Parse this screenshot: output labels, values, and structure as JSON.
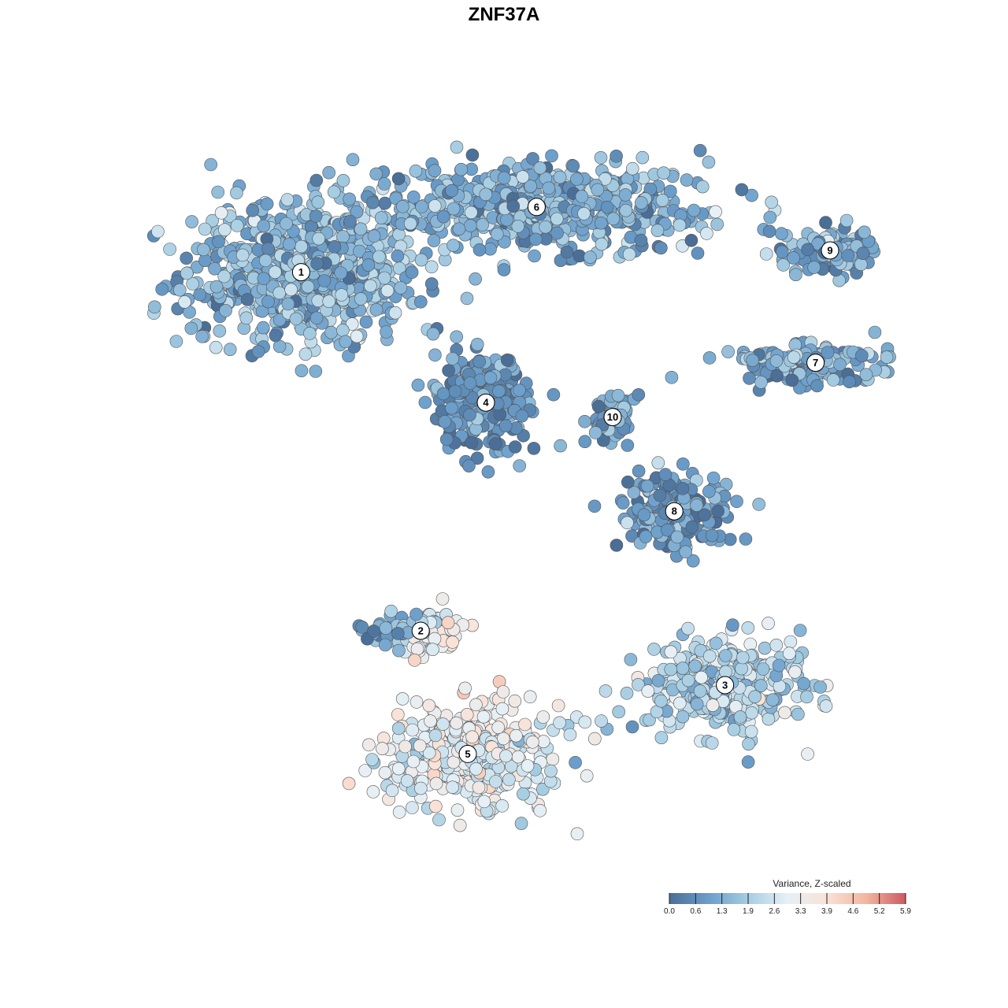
{
  "chart_data": {
    "type": "scatter",
    "title": "ZNF37A",
    "xlabel": "",
    "ylabel": "",
    "grid": false,
    "legend_position": "bottom-right",
    "colorbar": {
      "title": "Variance, Z-scaled",
      "ticks": [
        "0.0",
        "0.6",
        "1.3",
        "1.9",
        "2.6",
        "3.3",
        "3.9",
        "4.6",
        "5.2",
        "5.9"
      ],
      "range": [
        0.0,
        5.9
      ],
      "colors": [
        "#4a6e96",
        "#6b9ecb",
        "#a6cde2",
        "#e6f0f6",
        "#f9e2d6",
        "#f3b59e",
        "#cc5a62"
      ]
    },
    "clusters": [
      {
        "label": "1",
        "x": -5.6,
        "y": 6.4,
        "mean_value": 1.5,
        "spread": [
          3.0,
          1.8
        ]
      },
      {
        "label": "2",
        "x": -2.3,
        "y": -3.5,
        "mean_value": 1.2,
        "spread": [
          1.3,
          0.5
        ]
      },
      {
        "label": "3",
        "x": 6.1,
        "y": -5.0,
        "mean_value": 2.2,
        "spread": [
          2.0,
          1.2
        ]
      },
      {
        "label": "4",
        "x": -0.5,
        "y": 2.8,
        "mean_value": 0.8,
        "spread": [
          1.3,
          1.2
        ]
      },
      {
        "label": "5",
        "x": -1.0,
        "y": -6.9,
        "mean_value": 2.9,
        "spread": [
          2.3,
          1.3
        ]
      },
      {
        "label": "6",
        "x": 0.9,
        "y": 8.2,
        "mean_value": 1.3,
        "spread": [
          4.5,
          1.0
        ]
      },
      {
        "label": "7",
        "x": 8.6,
        "y": 3.9,
        "mean_value": 1.2,
        "spread": [
          2.0,
          0.5
        ]
      },
      {
        "label": "8",
        "x": 4.7,
        "y": -0.2,
        "mean_value": 0.9,
        "spread": [
          1.3,
          1.0
        ]
      },
      {
        "label": "9",
        "x": 9.0,
        "y": 7.0,
        "mean_value": 1.3,
        "spread": [
          1.2,
          0.6
        ]
      },
      {
        "label": "10",
        "x": 3.0,
        "y": 2.4,
        "mean_value": 1.1,
        "spread": [
          0.5,
          0.6
        ]
      }
    ],
    "high_expression_region": {
      "x": -0.6,
      "y": -4.4,
      "value": 4.4
    },
    "xlim": [
      -12.5,
      12.5
    ],
    "ylim": [
      -12.5,
      12.5
    ]
  }
}
